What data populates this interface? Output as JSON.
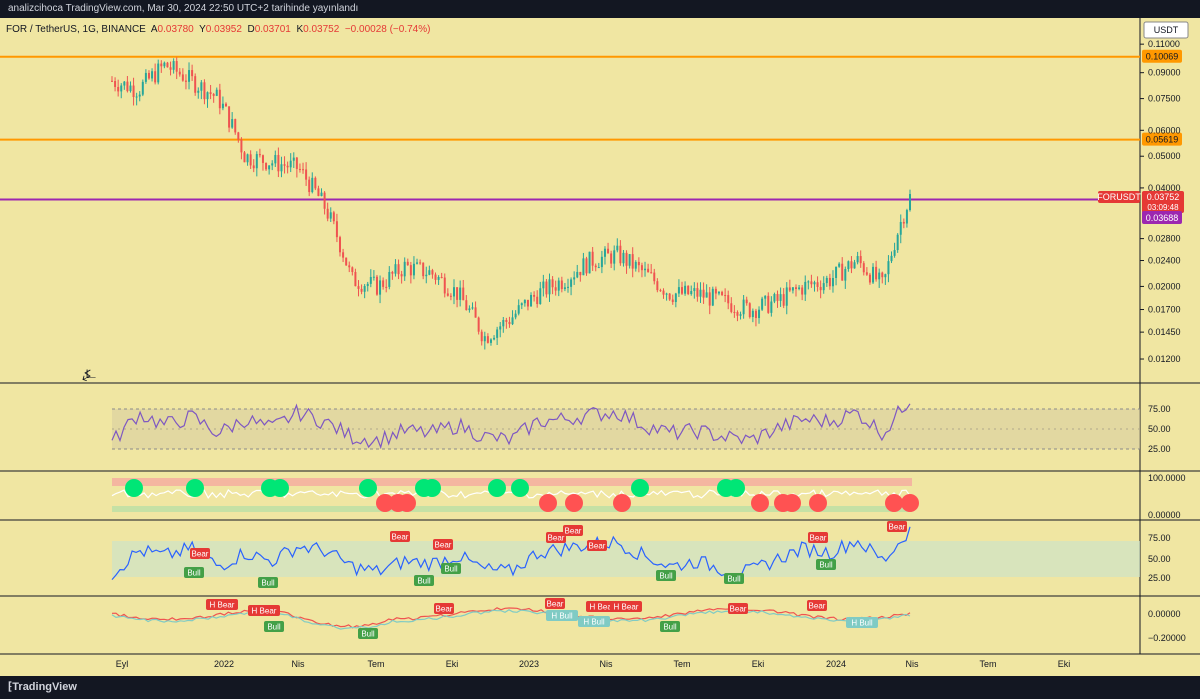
{
  "header": {
    "published": "analizcihoca TradingView.com, Mar 30, 2024 22:50 UTC+2 tarihinde yayınlandı"
  },
  "legend": {
    "symbol": "FOR / TetherUS, 1G, BINANCE",
    "a_label": "A",
    "a_value": "0.03780",
    "y_label": "Y",
    "y_value": "0.03952",
    "d_label": "D",
    "d_value": "0.03701",
    "k_label": "K",
    "k_value": "0.03752",
    "change": "−0.00028 (−0.74%)"
  },
  "currency_label": "USDT",
  "price_axis": [
    "0.11000",
    "0.09000",
    "0.07500",
    "0.06000",
    "0.05000",
    "0.04000",
    "0.02800",
    "0.02400",
    "0.02000",
    "0.01700",
    "0.01450",
    "0.01200"
  ],
  "price_badges": {
    "resistance_top": "0.10069",
    "resistance_mid": "0.05619",
    "symbol_tag": "FORUSDT",
    "last_price": "0.03752",
    "countdown": "03:09:48",
    "support": "0.03688"
  },
  "rsi_axis": [
    "75.00",
    "50.00",
    "25.00"
  ],
  "osc_axis": [
    "100.0000",
    "0.00000"
  ],
  "div_rsi_axis": [
    "75.00",
    "50.00",
    "25.00"
  ],
  "macd_axis": [
    "0.00000",
    "−0.20000"
  ],
  "time_axis": [
    "Eyl",
    "2022",
    "Nis",
    "Tem",
    "Eki",
    "2023",
    "Nis",
    "Tem",
    "Eki",
    "2024",
    "Nis",
    "Tem",
    "Eki"
  ],
  "divergence_labels": {
    "bear": "Bear",
    "bull": "Bull",
    "h_bear": "H Bear",
    "h_bull": "H Bull"
  },
  "footer": {
    "brand": "TradingView"
  },
  "colors": {
    "background": "#f0e6a2",
    "orange_level": "#ff9800",
    "purple_level": "#9c27b0",
    "price_red": "#e53935",
    "rsi_line": "#7e57c2",
    "div_rsi_line": "#2962ff",
    "bull_green": "#00e676",
    "bear_red": "#ff5252"
  },
  "chart_data": [
    {
      "type": "line",
      "title": "FOR / TetherUS, 1G, BINANCE",
      "x": [
        "2021-09",
        "2021-10",
        "2021-11",
        "2021-12",
        "2022-01",
        "2022-02",
        "2022-03",
        "2022-04",
        "2022-05",
        "2022-06",
        "2022-07",
        "2022-08",
        "2022-09",
        "2022-10",
        "2022-11",
        "2022-12",
        "2023-01",
        "2023-02",
        "2023-03",
        "2023-04",
        "2023-05",
        "2023-06",
        "2023-07",
        "2023-08",
        "2023-09",
        "2023-10",
        "2023-11",
        "2023-12",
        "2024-01",
        "2024-02",
        "2024-03"
      ],
      "series": [
        {
          "name": "FORUSDT",
          "values": [
            0.085,
            0.08,
            0.095,
            0.085,
            0.075,
            0.05,
            0.048,
            0.046,
            0.035,
            0.021,
            0.02,
            0.023,
            0.022,
            0.019,
            0.014,
            0.016,
            0.019,
            0.021,
            0.024,
            0.025,
            0.022,
            0.019,
            0.019,
            0.018,
            0.017,
            0.018,
            0.02,
            0.021,
            0.024,
            0.02,
            0.0375
          ]
        }
      ],
      "yscale": "log",
      "ylim": [
        0.0105,
        0.125
      ],
      "levels": [
        0.10069,
        0.05619,
        0.03688
      ]
    },
    {
      "type": "line",
      "series": [
        {
          "name": "RSI",
          "values": [
            40,
            65,
            55,
            62,
            48,
            60,
            52,
            66,
            58,
            45,
            42,
            50,
            48,
            55,
            45,
            42,
            58,
            60,
            64,
            66,
            55,
            48,
            50,
            45,
            42,
            52,
            60,
            58,
            66,
            48,
            78
          ]
        }
      ],
      "ylim": [
        20,
        85
      ]
    },
    {
      "type": "line",
      "series": [
        {
          "name": "Div RSI",
          "values": [
            38,
            60,
            55,
            62,
            45,
            58,
            50,
            64,
            60,
            45,
            40,
            50,
            48,
            55,
            42,
            40,
            58,
            62,
            66,
            68,
            55,
            45,
            50,
            42,
            40,
            52,
            62,
            58,
            70,
            50,
            80
          ]
        }
      ],
      "ylim": [
        20,
        85
      ]
    }
  ]
}
